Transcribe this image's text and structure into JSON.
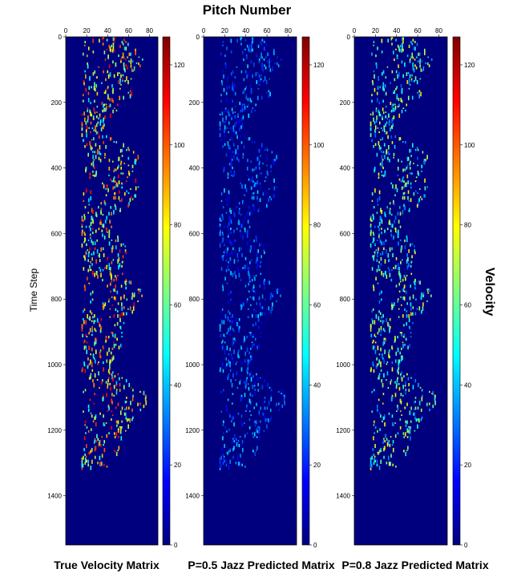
{
  "figure": {
    "top_label": "Pitch Number",
    "y_axis_label": "Time Step",
    "colorbar_label": "Velocity",
    "colormap": [
      "#00007f",
      "#0000ff",
      "#007fff",
      "#00ffff",
      "#7fff7f",
      "#ffff00",
      "#ff7f00",
      "#ff0000",
      "#7f0000"
    ],
    "background_color": "#00007f"
  },
  "chart_data": [
    {
      "type": "heatmap",
      "title": "True Velocity Matrix",
      "xlabel": "Pitch Number",
      "ylabel": "Time Step",
      "xlim": [
        0,
        88
      ],
      "ylim": [
        1550,
        0
      ],
      "x_ticks": [
        0,
        20,
        40,
        60,
        80
      ],
      "y_ticks": [
        0,
        200,
        400,
        600,
        800,
        1000,
        1200,
        1400
      ],
      "colorbar": {
        "label": "Velocity",
        "range": [
          0,
          127
        ],
        "ticks": [
          0,
          20,
          40,
          60,
          80,
          100,
          120
        ]
      },
      "note_time_range": [
        0,
        1310
      ],
      "pitch_range": [
        15,
        85
      ],
      "velocity_range": [
        40,
        115
      ]
    },
    {
      "type": "heatmap",
      "title": "P=0.5 Jazz Predicted Matrix",
      "xlabel": "Pitch Number",
      "ylabel": "",
      "xlim": [
        0,
        88
      ],
      "ylim": [
        1550,
        0
      ],
      "x_ticks": [
        0,
        20,
        40,
        60,
        80
      ],
      "y_ticks": [
        0,
        200,
        400,
        600,
        800,
        1000,
        1200,
        1400
      ],
      "colorbar": {
        "label": "Velocity",
        "range": [
          0,
          127
        ],
        "ticks": [
          0,
          20,
          40,
          60,
          80,
          100,
          120
        ]
      },
      "note_time_range": [
        0,
        1310
      ],
      "pitch_range": [
        15,
        85
      ],
      "velocity_range": [
        12,
        45
      ]
    },
    {
      "type": "heatmap",
      "title": "P=0.8 Jazz Predicted Matrix",
      "xlabel": "Pitch Number",
      "ylabel": "",
      "xlim": [
        0,
        88
      ],
      "ylim": [
        1550,
        0
      ],
      "x_ticks": [
        0,
        20,
        40,
        60,
        80
      ],
      "y_ticks": [
        0,
        200,
        400,
        600,
        800,
        1000,
        1200,
        1400
      ],
      "colorbar": {
        "label": "Velocity",
        "range": [
          0,
          127
        ],
        "ticks": [
          0,
          20,
          40,
          60,
          80,
          100,
          120
        ]
      },
      "note_time_range": [
        0,
        1310
      ],
      "pitch_range": [
        15,
        85
      ],
      "velocity_range": [
        25,
        85
      ]
    }
  ]
}
